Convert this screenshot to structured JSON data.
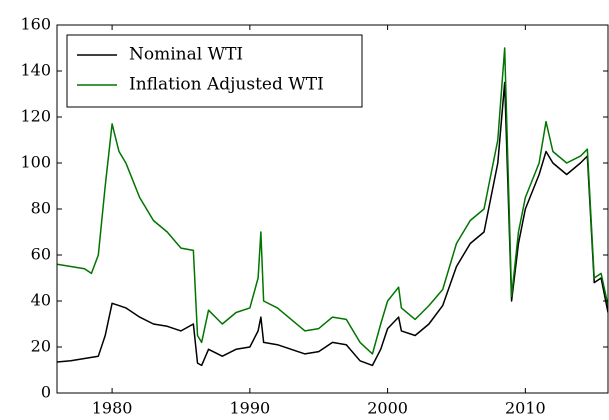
{
  "chart_data": {
    "type": "line",
    "x": [
      1976,
      1977,
      1978,
      1978.5,
      1979,
      1979.5,
      1980,
      1980.5,
      1981,
      1982,
      1983,
      1984,
      1985,
      1985.9,
      1986.2,
      1986.5,
      1987,
      1988,
      1989,
      1990,
      1990.6,
      1990.8,
      1991,
      1992,
      1993,
      1994,
      1995,
      1996,
      1997,
      1998,
      1998.9,
      1999.5,
      2000,
      2000.8,
      2001,
      2002,
      2003,
      2004,
      2005,
      2006,
      2007,
      2008,
      2008.5,
      2009,
      2009.5,
      2010,
      2011,
      2011.5,
      2012,
      2013,
      2014,
      2014.5,
      2015,
      2015.5,
      2016
    ],
    "series": [
      {
        "name": "Nominal WTI",
        "color": "#000000",
        "values": [
          13.5,
          14,
          15,
          15.5,
          16,
          25,
          39,
          38,
          37,
          33,
          30,
          29,
          27,
          30,
          13,
          12,
          19,
          16,
          19,
          20,
          27,
          33,
          22,
          21,
          19,
          17,
          18,
          22,
          21,
          14,
          12,
          19,
          28,
          33,
          27,
          25,
          30,
          38,
          55,
          65,
          70,
          100,
          135,
          40,
          65,
          80,
          95,
          105,
          100,
          95,
          100,
          103,
          48,
          50,
          35
        ]
      },
      {
        "name": "Inflation Adjusted WTI",
        "color": "#007500",
        "values": [
          56,
          55,
          54,
          52,
          60,
          90,
          117,
          105,
          100,
          85,
          75,
          70,
          63,
          62,
          25,
          22,
          36,
          30,
          35,
          37,
          50,
          70,
          40,
          37,
          32,
          27,
          28,
          33,
          32,
          22,
          17,
          30,
          40,
          46,
          37,
          32,
          38,
          45,
          65,
          75,
          80,
          110,
          150,
          42,
          70,
          85,
          100,
          118,
          105,
          100,
          103,
          106,
          50,
          52,
          38
        ]
      }
    ],
    "xlim": [
      1976,
      2016
    ],
    "xticks": [
      1980,
      1990,
      2000,
      2010
    ],
    "ylim": [
      0,
      160
    ],
    "yticks": [
      0,
      20,
      40,
      60,
      80,
      100,
      120,
      140,
      160
    ],
    "grid": false,
    "legend": "upper left"
  }
}
